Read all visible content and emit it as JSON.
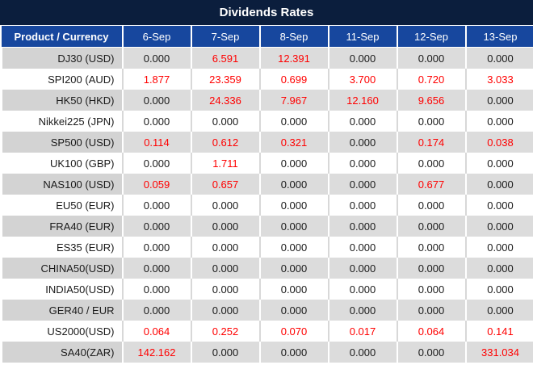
{
  "title": "Dividends Rates",
  "columns": [
    "Product / Currency",
    "6-Sep",
    "7-Sep",
    "8-Sep",
    "11-Sep",
    "12-Sep",
    "13-Sep"
  ],
  "rows": [
    {
      "label": "DJ30 (USD)",
      "values": [
        "0.000",
        "6.591",
        "12.391",
        "0.000",
        "0.000",
        "0.000"
      ],
      "red": [
        false,
        true,
        true,
        false,
        false,
        false
      ]
    },
    {
      "label": "SPI200 (AUD)",
      "values": [
        "1.877",
        "23.359",
        "0.699",
        "3.700",
        "0.720",
        "3.033"
      ],
      "red": [
        true,
        true,
        true,
        true,
        true,
        true
      ]
    },
    {
      "label": "HK50 (HKD)",
      "values": [
        "0.000",
        "24.336",
        "7.967",
        "12.160",
        "9.656",
        "0.000"
      ],
      "red": [
        false,
        true,
        true,
        true,
        true,
        false
      ]
    },
    {
      "label": "Nikkei225 (JPN)",
      "values": [
        "0.000",
        "0.000",
        "0.000",
        "0.000",
        "0.000",
        "0.000"
      ],
      "red": [
        false,
        false,
        false,
        false,
        false,
        false
      ]
    },
    {
      "label": "SP500 (USD)",
      "values": [
        "0.114",
        "0.612",
        "0.321",
        "0.000",
        "0.174",
        "0.038"
      ],
      "red": [
        true,
        true,
        true,
        false,
        true,
        true
      ]
    },
    {
      "label": "UK100 (GBP)",
      "values": [
        "0.000",
        "1.711",
        "0.000",
        "0.000",
        "0.000",
        "0.000"
      ],
      "red": [
        false,
        true,
        false,
        false,
        false,
        false
      ]
    },
    {
      "label": "NAS100 (USD)",
      "values": [
        "0.059",
        "0.657",
        "0.000",
        "0.000",
        "0.677",
        "0.000"
      ],
      "red": [
        true,
        true,
        false,
        false,
        true,
        false
      ]
    },
    {
      "label": "EU50 (EUR)",
      "values": [
        "0.000",
        "0.000",
        "0.000",
        "0.000",
        "0.000",
        "0.000"
      ],
      "red": [
        false,
        false,
        false,
        false,
        false,
        false
      ]
    },
    {
      "label": "FRA40 (EUR)",
      "values": [
        "0.000",
        "0.000",
        "0.000",
        "0.000",
        "0.000",
        "0.000"
      ],
      "red": [
        false,
        false,
        false,
        false,
        false,
        false
      ]
    },
    {
      "label": "ES35 (EUR)",
      "values": [
        "0.000",
        "0.000",
        "0.000",
        "0.000",
        "0.000",
        "0.000"
      ],
      "red": [
        false,
        false,
        false,
        false,
        false,
        false
      ]
    },
    {
      "label": "CHINA50(USD)",
      "values": [
        "0.000",
        "0.000",
        "0.000",
        "0.000",
        "0.000",
        "0.000"
      ],
      "red": [
        false,
        false,
        false,
        false,
        false,
        false
      ]
    },
    {
      "label": "INDIA50(USD)",
      "values": [
        "0.000",
        "0.000",
        "0.000",
        "0.000",
        "0.000",
        "0.000"
      ],
      "red": [
        false,
        false,
        false,
        false,
        false,
        false
      ]
    },
    {
      "label": "GER40 / EUR",
      "values": [
        "0.000",
        "0.000",
        "0.000",
        "0.000",
        "0.000",
        "0.000"
      ],
      "red": [
        false,
        false,
        false,
        false,
        false,
        false
      ]
    },
    {
      "label": "US2000(USD)",
      "values": [
        "0.064",
        "0.252",
        "0.070",
        "0.017",
        "0.064",
        "0.141"
      ],
      "red": [
        true,
        true,
        true,
        true,
        true,
        true
      ]
    },
    {
      "label": "SA40(ZAR)",
      "values": [
        "142.162",
        "0.000",
        "0.000",
        "0.000",
        "0.000",
        "331.034"
      ],
      "red": [
        true,
        false,
        false,
        false,
        false,
        true
      ]
    }
  ],
  "colors": {
    "title_bg": "#0b1e3d",
    "header_bg": "#17479e",
    "header_text": "#ffffff",
    "row_alt_bg": "#dcdcdc",
    "row_alt_label_bg": "#d3d3d3",
    "row_bg": "#ffffff",
    "value_text": "#1a1a1a",
    "highlight_value_text": "#ff0000"
  }
}
